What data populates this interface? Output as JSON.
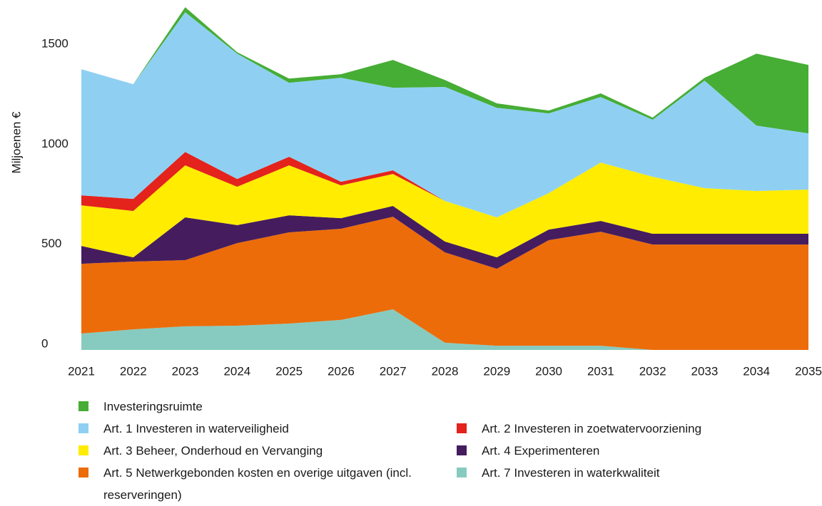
{
  "chart_data": {
    "type": "stacked-area",
    "y_label": "Miljoenen €",
    "categories": [
      "2021",
      "2022",
      "2023",
      "2024",
      "2025",
      "2026",
      "2027",
      "2028",
      "2029",
      "2030",
      "2031",
      "2032",
      "2033",
      "2034",
      "2035"
    ],
    "ylim": [
      0,
      1750
    ],
    "yticks": [
      0,
      500,
      1000,
      1500
    ],
    "series": [
      {
        "name": "Art. 7 Investeren in waterkwaliteit",
        "color": "#87cbc0",
        "values": [
          82,
          103,
          118,
          121,
          132,
          150,
          203,
          36,
          21,
          21,
          21,
          0,
          0,
          0,
          0
        ]
      },
      {
        "name": "Art. 5 Netwerkgebonden kosten en overige uitgaven (incl. reserveringen)",
        "color": "#ec6c0a",
        "values": [
          349,
          339,
          331,
          413,
          456,
          456,
          463,
          452,
          385,
          528,
          570,
          527,
          527,
          527,
          527
        ]
      },
      {
        "name": "Art. 4 Experimenteren",
        "color": "#451d5e",
        "values": [
          89,
          21,
          214,
          90,
          85,
          53,
          54,
          54,
          57,
          53,
          54,
          54,
          54,
          54,
          54
        ]
      },
      {
        "name": "Art. 3 Beheer, Onderhoud en Vervanging",
        "color": "#ffec00",
        "values": [
          203,
          232,
          260,
          192,
          250,
          164,
          160,
          203,
          200,
          182,
          292,
          285,
          228,
          214,
          221
        ]
      },
      {
        "name": "Art. 2 Investeren in zoetwatervoorziening",
        "color": "#e3231c",
        "values": [
          50,
          60,
          67,
          39,
          43,
          18,
          18,
          0,
          0,
          0,
          0,
          0,
          0,
          0,
          0
        ]
      },
      {
        "name": "Art. 1 Investeren in waterveiligheid",
        "color": "#8fd0f2",
        "values": [
          631,
          574,
          699,
          627,
          370,
          520,
          413,
          570,
          548,
          399,
          328,
          285,
          538,
          327,
          281
        ]
      },
      {
        "name": "Investeringsruimte",
        "color": "#46ad35",
        "values": [
          0,
          0,
          25,
          7,
          21,
          18,
          139,
          35,
          22,
          14,
          18,
          11,
          14,
          360,
          342
        ]
      }
    ]
  }
}
